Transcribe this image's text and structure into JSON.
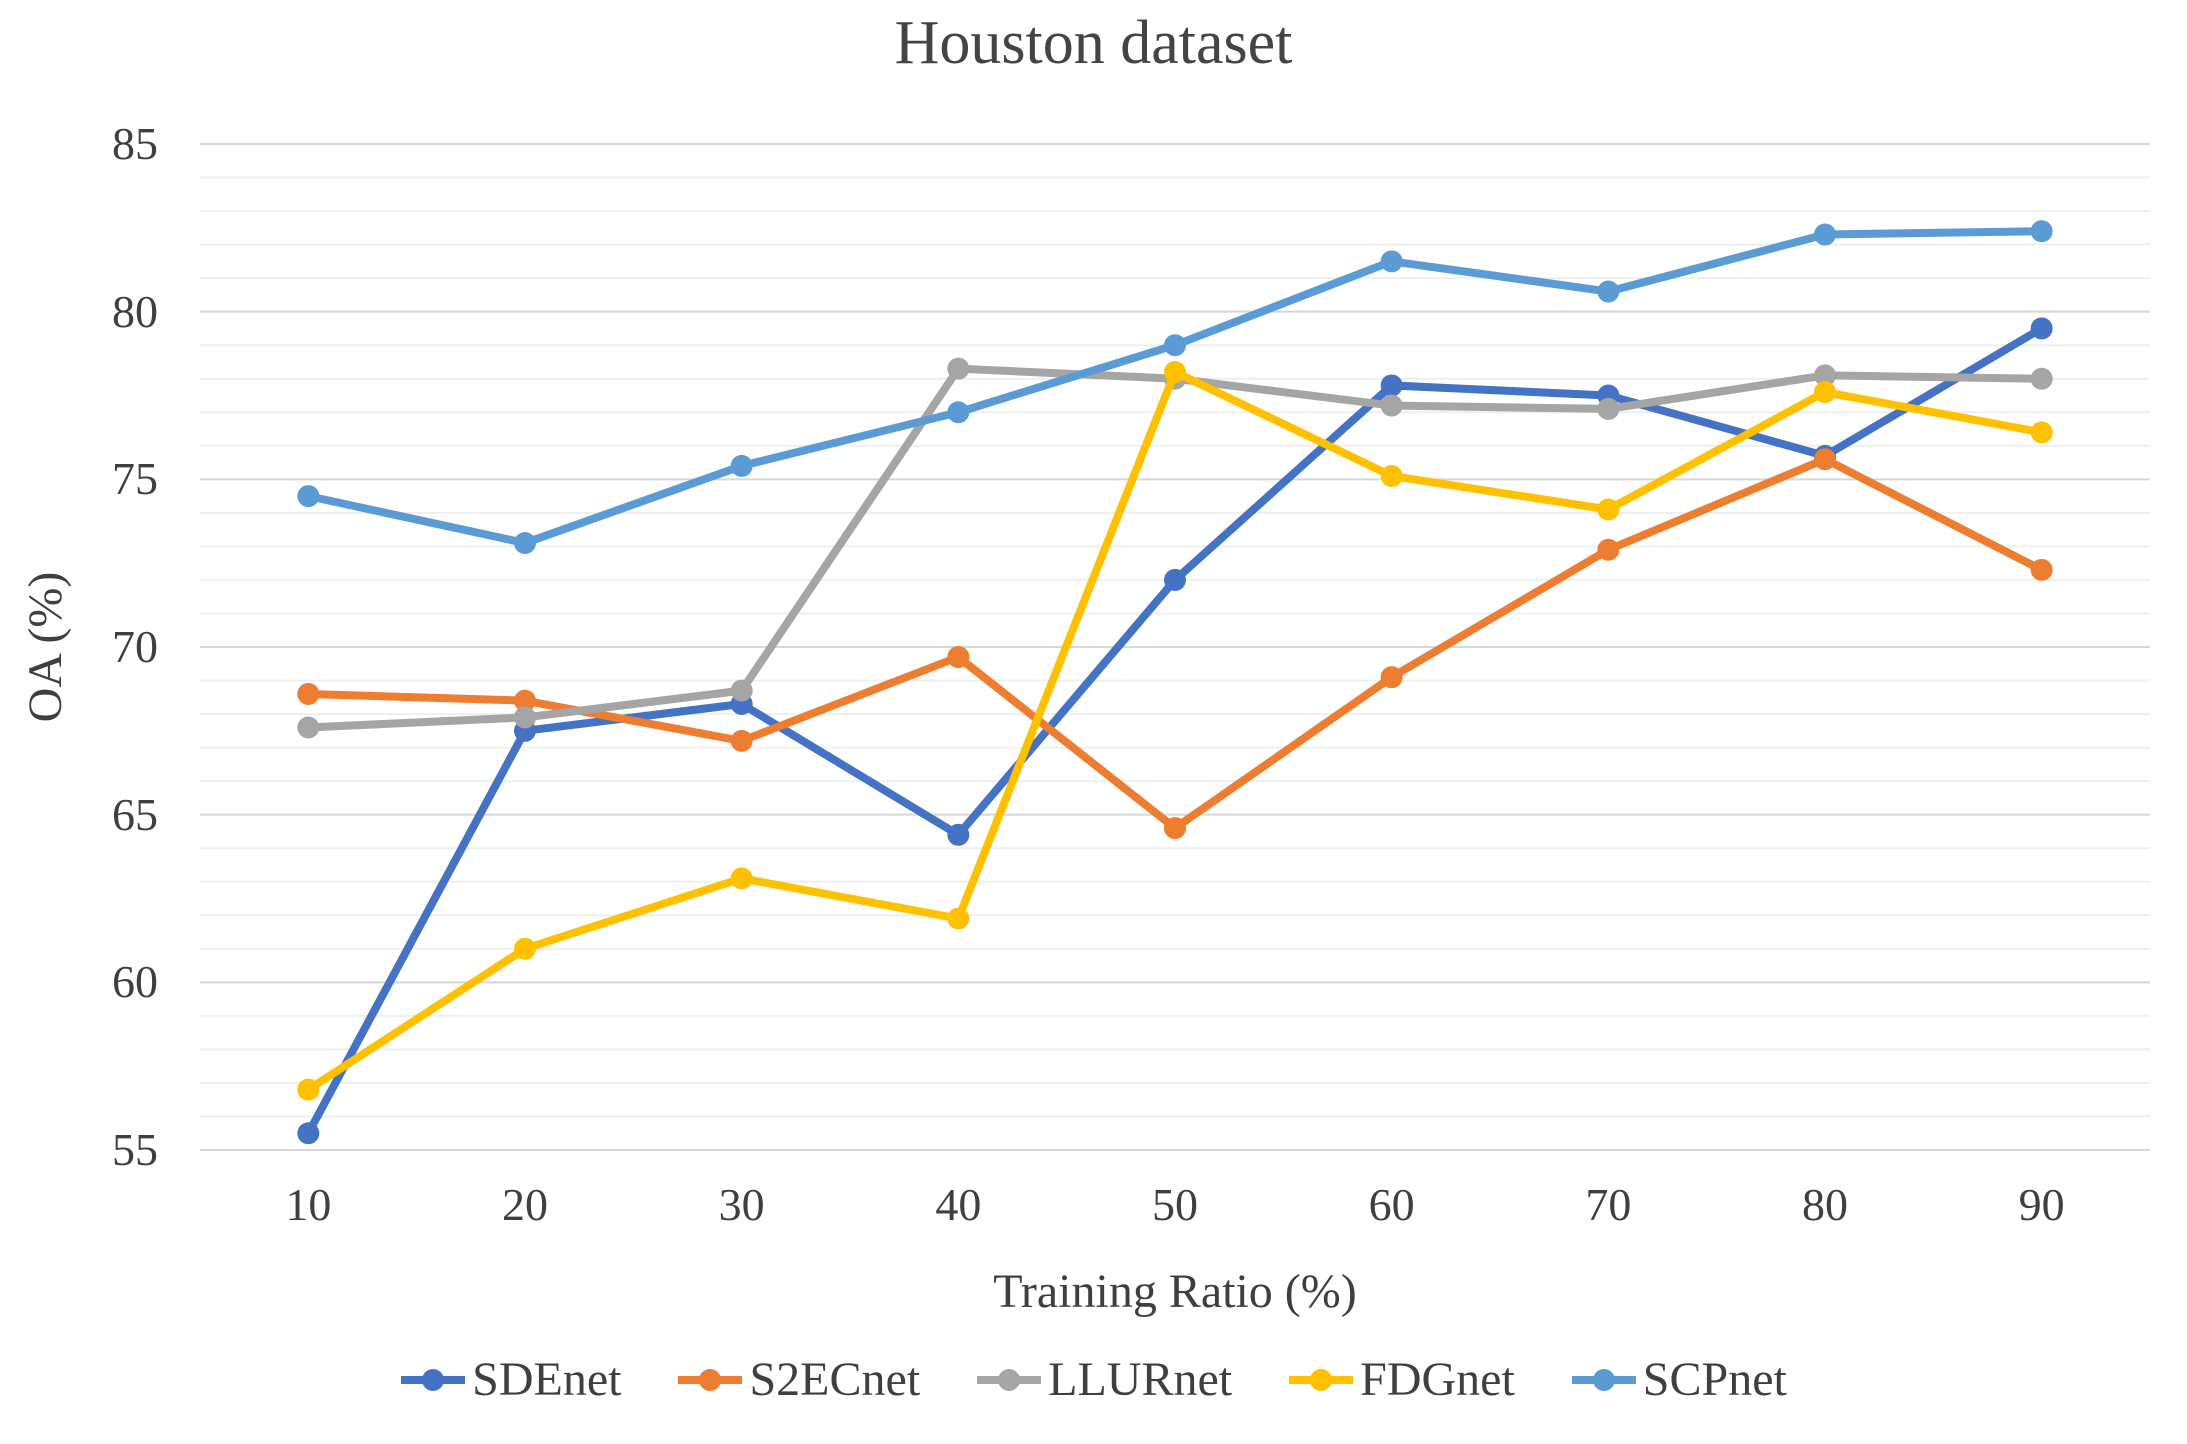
{
  "title": "Houston dataset",
  "chart_data": {
    "type": "line",
    "title": "Houston dataset",
    "xlabel": "Training Ratio (%)",
    "ylabel": "OA (%)",
    "categories": [
      10,
      20,
      30,
      40,
      50,
      60,
      70,
      80,
      90
    ],
    "y_ticks": [
      85,
      80,
      75,
      70,
      65,
      60,
      55
    ],
    "ylim": [
      55,
      85
    ],
    "grid": {
      "minor_step": 1,
      "major_step": 5,
      "minor_color": "#efefef",
      "major_color": "#d8d8d8"
    },
    "legend_position": "bottom",
    "series": [
      {
        "name": "SDEnet",
        "color": "#4472C4",
        "values": [
          55.5,
          67.5,
          68.3,
          64.4,
          72.0,
          77.8,
          77.5,
          75.7,
          79.5
        ]
      },
      {
        "name": "S2ECnet",
        "color": "#ED7D31",
        "values": [
          68.6,
          68.4,
          67.2,
          69.7,
          64.6,
          69.1,
          72.9,
          75.6,
          72.3
        ]
      },
      {
        "name": "LLURnet",
        "color": "#A5A5A5",
        "values": [
          67.6,
          67.9,
          68.7,
          78.3,
          78.0,
          77.2,
          77.1,
          78.1,
          78.0
        ]
      },
      {
        "name": "FDGnet",
        "color": "#FFC000",
        "values": [
          56.8,
          61.0,
          63.1,
          61.9,
          78.2,
          75.1,
          74.1,
          77.6,
          76.4
        ]
      },
      {
        "name": "SCPnet",
        "color": "#5B9BD5",
        "values": [
          74.5,
          73.1,
          75.4,
          77.0,
          79.0,
          81.5,
          80.6,
          82.3,
          82.4
        ]
      }
    ]
  }
}
